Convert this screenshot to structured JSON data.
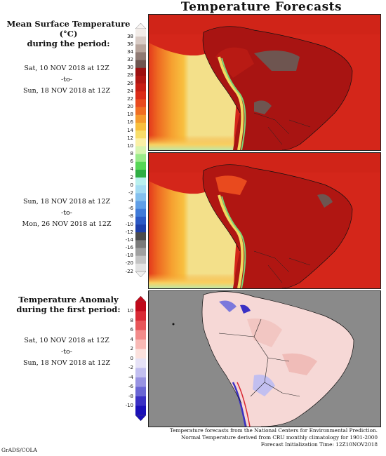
{
  "title": "Temperature Forecasts",
  "panel1": {
    "heading_line1": "Mean Surface Temperature (°C)",
    "heading_line2": "during the period:",
    "start": "Sat, 10 NOV 2018 at 12Z",
    "to": "-to-",
    "end": "Sun, 18 NOV 2018 at 12Z"
  },
  "panel2": {
    "start": "Sun, 18 NOV 2018 at 12Z",
    "to": "-to-",
    "end": "Mon, 26 NOV 2018 at 12Z"
  },
  "panel3": {
    "heading_line1": "Temperature Anomaly",
    "heading_line2": "during the first period:",
    "start": "Sat, 10 NOV 2018 at 12Z",
    "to": "-to-",
    "end": "Sun, 18 NOV 2018 at 12Z"
  },
  "temp_scale": [
    "38",
    "36",
    "34",
    "32",
    "30",
    "28",
    "26",
    "24",
    "22",
    "20",
    "18",
    "16",
    "14",
    "12",
    "10",
    "8",
    "6",
    "4",
    "2",
    "0",
    "-2",
    "-4",
    "-6",
    "-8",
    "-10",
    "-12",
    "-14",
    "-16",
    "-18",
    "-20",
    "-22"
  ],
  "temp_colors": [
    "#f2ece8",
    "#d8cbc5",
    "#b8a59c",
    "#8f7a73",
    "#6e5550",
    "#9c0f0f",
    "#b01612",
    "#c81e14",
    "#dc2c18",
    "#e94a1e",
    "#f06e22",
    "#f59a2c",
    "#f8bf3c",
    "#f7dd6a",
    "#fbf0a6",
    "#d8f5b0",
    "#9aeb8a",
    "#55d655",
    "#2fae44",
    "#b9f0ee",
    "#a4dcf2",
    "#84c0ee",
    "#5f9ee6",
    "#3f7ad8",
    "#2a58c4",
    "#1d3ea8",
    "#4b4b4b",
    "#7a7a7a",
    "#a0a0a0",
    "#c4c4c4",
    "#e2e2e2"
  ],
  "anomaly_scale": [
    "10",
    "8",
    "6",
    "4",
    "2",
    "0",
    "-2",
    "-4",
    "-6",
    "-8",
    "-10"
  ],
  "anomaly_colors": [
    "#c0081a",
    "#d92a35",
    "#e85659",
    "#f28b8a",
    "#f8b9b5",
    "#fbe1dd",
    "#e6e2f6",
    "#c2bff0",
    "#9893e2",
    "#6a66d4",
    "#3a30c4",
    "#1a10b8"
  ],
  "footer": {
    "line1": "Temperature forecasts from the National Centers for Environmental Prediction.",
    "line2": "Normal Temperature derived from CRU monthly climatology for 1901-2000",
    "line3": "Forecast Initialization Time: 12Z10NOV2018"
  },
  "credit": "GrADS/COLA"
}
